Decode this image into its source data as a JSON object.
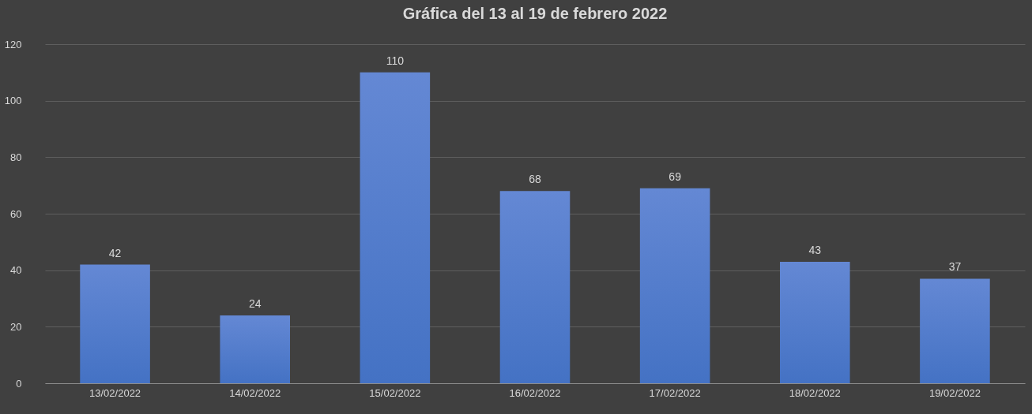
{
  "chart_data": {
    "type": "bar",
    "title": "Gráfica del 13 al 19 de febrero 2022",
    "categories": [
      "13/02/2022",
      "14/02/2022",
      "15/02/2022",
      "16/02/2022",
      "17/02/2022",
      "18/02/2022",
      "19/02/2022"
    ],
    "values": [
      42,
      24,
      110,
      68,
      69,
      43,
      37
    ],
    "color": "#4472c4",
    "ylim": [
      0,
      120
    ],
    "yticks": [
      0,
      20,
      40,
      60,
      80,
      100,
      120
    ],
    "grid": "y",
    "data_labels": true
  }
}
